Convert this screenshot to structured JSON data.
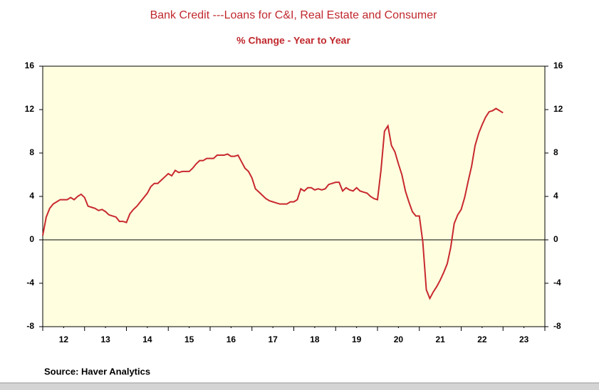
{
  "chart_data": {
    "type": "line",
    "title": "Bank Credit ---Loans for C&I, Real Estate and Consumer",
    "subtitle": "% Change - Year to Year",
    "source": "Source:  Haver Analytics",
    "x": [
      12,
      12.083,
      12.167,
      12.25,
      12.333,
      12.417,
      12.5,
      12.583,
      12.667,
      12.75,
      12.833,
      12.917,
      13,
      13.083,
      13.167,
      13.25,
      13.333,
      13.417,
      13.5,
      13.583,
      13.667,
      13.75,
      13.833,
      13.917,
      14,
      14.083,
      14.167,
      14.25,
      14.333,
      14.417,
      14.5,
      14.583,
      14.667,
      14.75,
      14.833,
      14.917,
      15,
      15.083,
      15.167,
      15.25,
      15.333,
      15.417,
      15.5,
      15.583,
      15.667,
      15.75,
      15.833,
      15.917,
      16,
      16.083,
      16.167,
      16.25,
      16.333,
      16.417,
      16.5,
      16.583,
      16.667,
      16.75,
      16.833,
      16.917,
      17,
      17.083,
      17.167,
      17.25,
      17.333,
      17.417,
      17.5,
      17.583,
      17.667,
      17.75,
      17.833,
      17.917,
      18,
      18.083,
      18.167,
      18.25,
      18.333,
      18.417,
      18.5,
      18.583,
      18.667,
      18.75,
      18.833,
      18.917,
      19,
      19.083,
      19.167,
      19.25,
      19.333,
      19.417,
      19.5,
      19.583,
      19.667,
      19.75,
      19.833,
      19.917,
      20,
      20.083,
      20.167,
      20.25,
      20.333,
      20.417,
      20.5,
      20.583,
      20.667,
      20.75,
      20.833,
      20.917,
      21,
      21.083,
      21.167,
      21.25,
      21.333,
      21.417,
      21.5,
      21.583,
      21.667,
      21.75,
      21.833,
      21.917,
      22,
      22.083,
      22.167,
      22.25,
      22.333,
      22.417,
      22.5,
      22.583,
      22.667,
      22.75,
      22.833,
      22.917,
      23
    ],
    "series": [
      {
        "color": "#c8282d",
        "values": [
          0.4,
          2.1,
          2.9,
          3.3,
          3.5,
          3.7,
          3.7,
          3.7,
          3.9,
          3.7,
          4.0,
          4.2,
          3.9,
          3.1,
          3.0,
          2.9,
          2.7,
          2.8,
          2.6,
          2.3,
          2.2,
          2.1,
          1.7,
          1.7,
          1.6,
          2.4,
          2.8,
          3.1,
          3.5,
          3.9,
          4.3,
          4.9,
          5.2,
          5.2,
          5.5,
          5.8,
          6.1,
          5.9,
          6.4,
          6.2,
          6.3,
          6.3,
          6.3,
          6.6,
          7.0,
          7.3,
          7.3,
          7.5,
          7.5,
          7.5,
          7.8,
          7.8,
          7.8,
          7.9,
          7.7,
          7.7,
          7.8,
          7.2,
          6.6,
          6.3,
          5.7,
          4.7,
          4.4,
          4.1,
          3.8,
          3.6,
          3.5,
          3.4,
          3.3,
          3.3,
          3.3,
          3.5,
          3.5,
          3.7,
          4.7,
          4.5,
          4.8,
          4.8,
          4.6,
          4.7,
          4.6,
          4.7,
          5.1,
          5.2,
          5.3,
          5.3,
          4.5,
          4.8,
          4.6,
          4.5,
          4.8,
          4.5,
          4.4,
          4.3,
          4.0,
          3.8,
          3.7,
          6.4,
          10.0,
          10.5,
          8.7,
          8.1,
          7.0,
          6.0,
          4.5,
          3.5,
          2.6,
          2.2,
          2.2,
          -0.2,
          -4.6,
          -5.4,
          -4.8,
          -4.3,
          -3.7,
          -3.0,
          -2.2,
          -0.7,
          1.5,
          2.3,
          2.8,
          3.9,
          5.4,
          6.8,
          8.7,
          9.8,
          10.6,
          11.3,
          11.8,
          11.9,
          12.1,
          11.9,
          11.7
        ]
      }
    ],
    "xlim": [
      12,
      24
    ],
    "xticks": [
      {
        "value": 12.5,
        "label": "12"
      },
      {
        "value": 13.5,
        "label": "13"
      },
      {
        "value": 14.5,
        "label": "14"
      },
      {
        "value": 15.5,
        "label": "15"
      },
      {
        "value": 16.5,
        "label": "16"
      },
      {
        "value": 17.5,
        "label": "17"
      },
      {
        "value": 18.5,
        "label": "18"
      },
      {
        "value": 19.5,
        "label": "19"
      },
      {
        "value": 20.5,
        "label": "20"
      },
      {
        "value": 21.5,
        "label": "21"
      },
      {
        "value": 22.5,
        "label": "22"
      },
      {
        "value": 23.5,
        "label": "23"
      }
    ],
    "ylim": [
      -8,
      16
    ],
    "yticks": [
      -8,
      -4,
      0,
      4,
      8,
      12,
      16
    ],
    "y2lim": [
      -8,
      16
    ],
    "y2ticks": [
      -8,
      -4,
      0,
      4,
      8,
      12,
      16
    ],
    "plot_background": "#ffffe0",
    "zero_line": true
  }
}
